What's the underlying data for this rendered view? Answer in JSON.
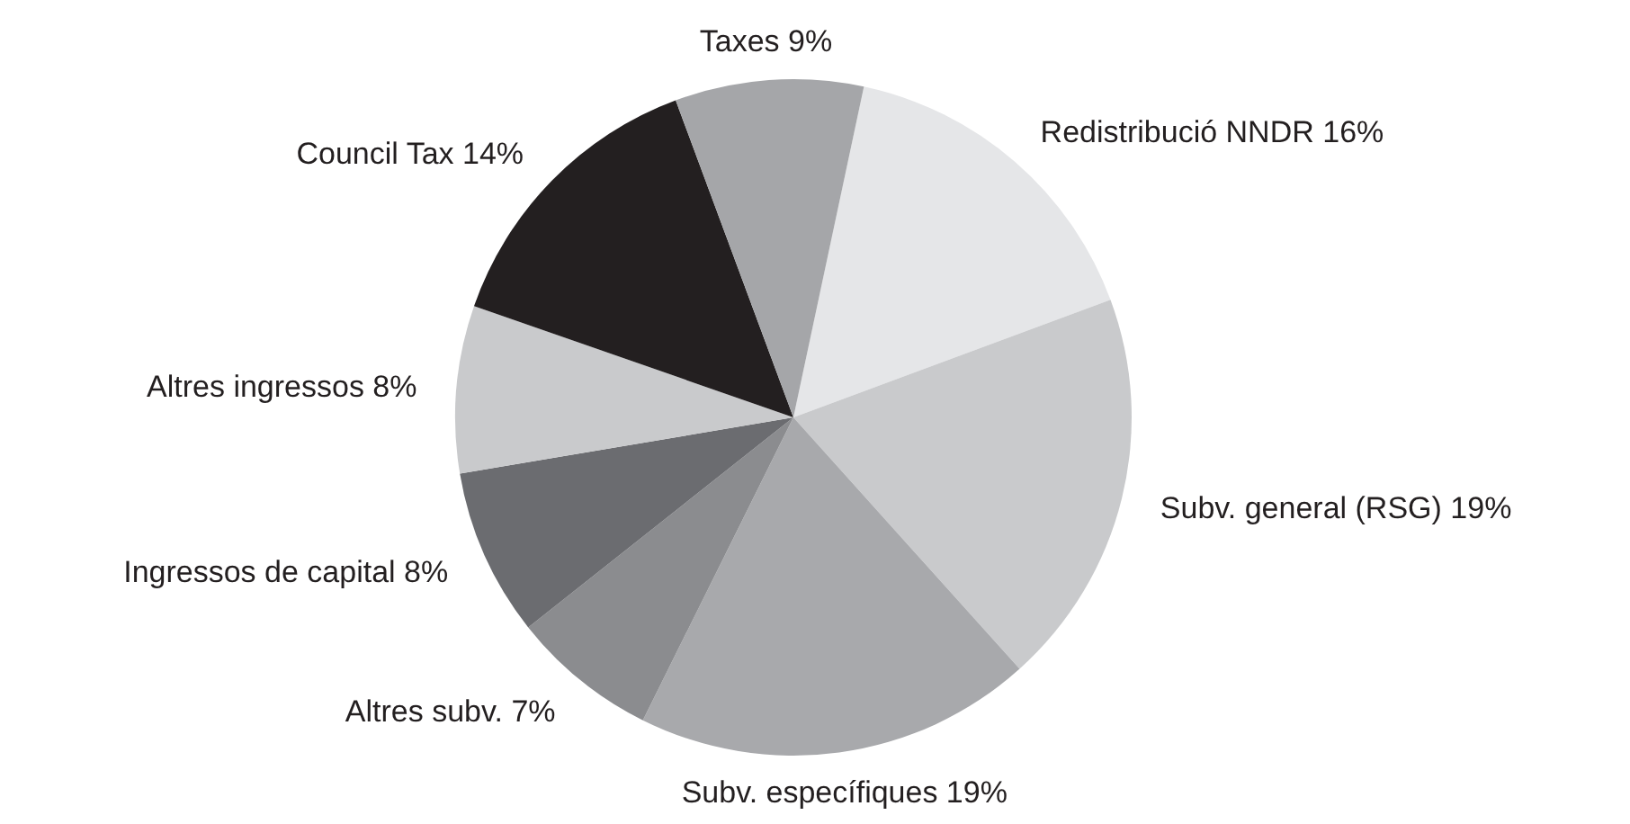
{
  "chart_data": {
    "type": "pie",
    "categories": [
      "Redistribució NNDR",
      "Subv. general (RSG)",
      "Subv. específiques",
      "Altres subv.",
      "Ingressos de capital",
      "Altres ingressos",
      "Council Tax",
      "Taxes"
    ],
    "values": [
      16,
      19,
      19,
      7,
      8,
      8,
      14,
      9
    ],
    "value_labels": [
      "16%",
      "19%",
      "19%",
      "7%",
      "8%",
      "8%",
      "14%",
      "9%"
    ],
    "colors": [
      "#e5e6e8",
      "#c9cacc",
      "#a8a9ac",
      "#8b8c8f",
      "#6b6c70",
      "#c9cacc",
      "#231f20",
      "#a5a6a9"
    ]
  }
}
